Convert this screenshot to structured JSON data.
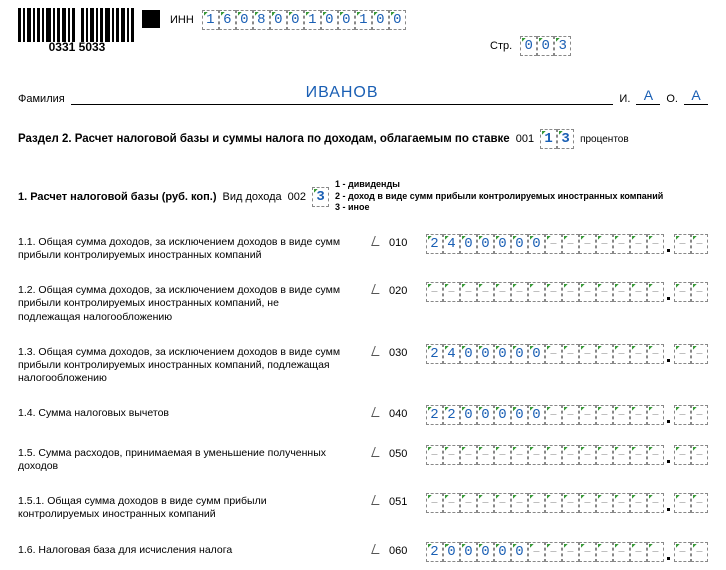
{
  "header": {
    "barcode_text": "0331 5033",
    "inn_label": "ИНН",
    "inn": [
      "1",
      "6",
      "0",
      "8",
      "0",
      "0",
      "1",
      "0",
      "0",
      "1",
      "0",
      "0"
    ],
    "page_label": "Стр.",
    "page": [
      "0",
      "0",
      "3"
    ]
  },
  "name": {
    "label": "Фамилия",
    "surname": "ИВАНОВ",
    "i_label": "И.",
    "i": "А",
    "o_label": "О.",
    "o": "А"
  },
  "section": {
    "title": "Раздел 2. Расчет налоговой базы и суммы налога по доходам, облагаемым по ставке",
    "code": "001",
    "rate": [
      "1",
      "3"
    ],
    "suffix": "процентов"
  },
  "sub1": {
    "title": "1. Расчет налоговой базы (руб. коп.)",
    "vid_label": "Вид дохода",
    "code": "002",
    "value": [
      "3"
    ],
    "legend1": "1 - дивиденды",
    "legend2": "2 - доход в виде сумм прибыли контролируемых иностранных компаний",
    "legend3": "3 - иное"
  },
  "dash": "–",
  "lines": [
    {
      "n": "1.1.",
      "desc": "Общая сумма доходов, за исключением доходов в виде сумм прибыли контролируемых иностранных компаний",
      "code": "010",
      "int": [
        "2",
        "4",
        "0",
        "0",
        "0",
        "0",
        "0",
        "",
        "",
        "",
        "",
        "",
        "",
        ""
      ],
      "kop": [
        "",
        ""
      ]
    },
    {
      "n": "1.2.",
      "desc": "Общая сумма доходов, за исключением доходов в виде сумм прибыли контролируемых иностранных компаний, не подлежащая налогообложению",
      "code": "020",
      "int": [
        "",
        "",
        "",
        "",
        "",
        "",
        "",
        "",
        "",
        "",
        "",
        "",
        "",
        ""
      ],
      "kop": [
        "",
        ""
      ]
    },
    {
      "n": "1.3.",
      "desc": "Общая сумма доходов, за исключением доходов в виде сумм прибыли контролируемых иностранных компаний, подлежащая налогообложению",
      "code": "030",
      "int": [
        "2",
        "4",
        "0",
        "0",
        "0",
        "0",
        "0",
        "",
        "",
        "",
        "",
        "",
        "",
        ""
      ],
      "kop": [
        "",
        ""
      ]
    },
    {
      "n": "1.4.",
      "desc": "Сумма налоговых вычетов",
      "code": "040",
      "int": [
        "2",
        "2",
        "0",
        "0",
        "0",
        "0",
        "0",
        "",
        "",
        "",
        "",
        "",
        "",
        ""
      ],
      "kop": [
        "",
        ""
      ]
    },
    {
      "n": "1.5.",
      "desc": "Сумма расходов, принимаемая в уменьшение полученных доходов",
      "code": "050",
      "int": [
        "",
        "",
        "",
        "",
        "",
        "",
        "",
        "",
        "",
        "",
        "",
        "",
        "",
        ""
      ],
      "kop": [
        "",
        ""
      ]
    },
    {
      "n": "1.5.1.",
      "desc": "Общая сумма доходов в виде сумм прибыли контролируемых иностранных компаний",
      "code": "051",
      "int": [
        "",
        "",
        "",
        "",
        "",
        "",
        "",
        "",
        "",
        "",
        "",
        "",
        "",
        ""
      ],
      "kop": [
        "",
        ""
      ]
    },
    {
      "n": "1.6.",
      "desc": "Налоговая база для исчисления налога",
      "code": "060",
      "int": [
        "2",
        "0",
        "0",
        "0",
        "0",
        "0",
        "",
        "",
        "",
        "",
        "",
        "",
        "",
        ""
      ],
      "kop": [
        "",
        ""
      ]
    }
  ]
}
